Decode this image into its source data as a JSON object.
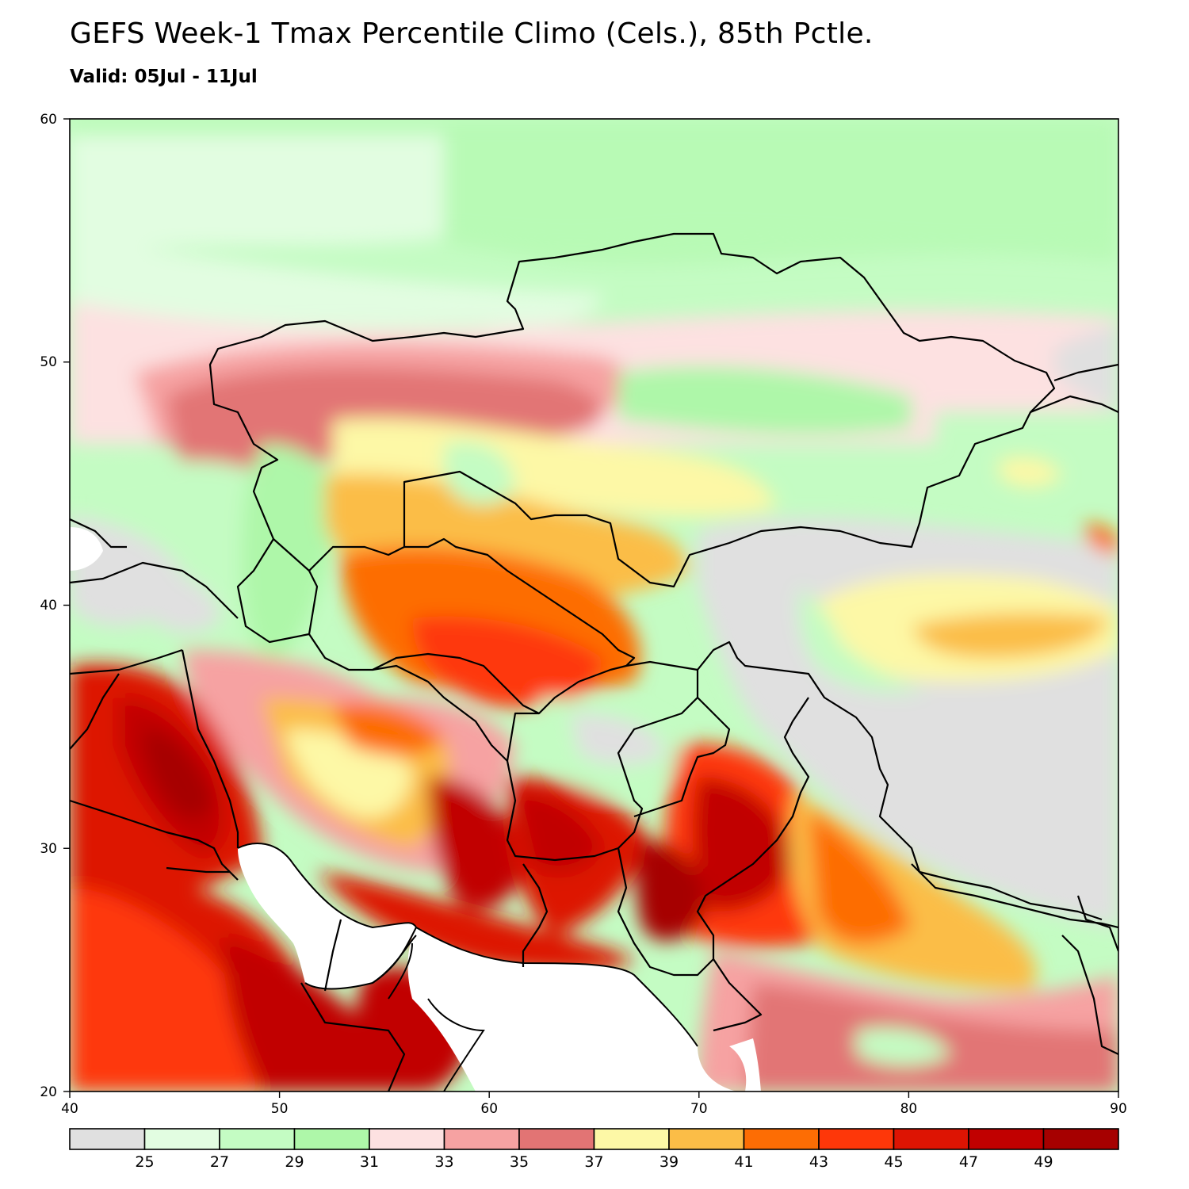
{
  "header": {
    "title": "GEFS Week-1 Tmax Percentile Climo (Cels.), 85th Pctle.",
    "subtitle": "Valid: 05Jul - 11Jul"
  },
  "map": {
    "lon_range": [
      40,
      90
    ],
    "lat_range": [
      20,
      60
    ],
    "lon_ticks": [
      "40",
      "50",
      "60",
      "70",
      "80",
      "90"
    ],
    "lat_ticks": [
      "20",
      "30",
      "40",
      "50",
      "60"
    ],
    "land_mask_color": "#ffffff"
  },
  "colorbar": {
    "labels": [
      "25",
      "27",
      "29",
      "31",
      "33",
      "35",
      "37",
      "39",
      "41",
      "43",
      "45",
      "47",
      "49"
    ],
    "colors": [
      "#e0e0e0",
      "#e2fde1",
      "#c4fcc3",
      "#aef7a9",
      "#fde1e1",
      "#f6a2a2",
      "#e27474",
      "#fdf8a6",
      "#fbbd47",
      "#fd6d04",
      "#fe3709",
      "#dd1403",
      "#c10000",
      "#a60000"
    ]
  }
}
